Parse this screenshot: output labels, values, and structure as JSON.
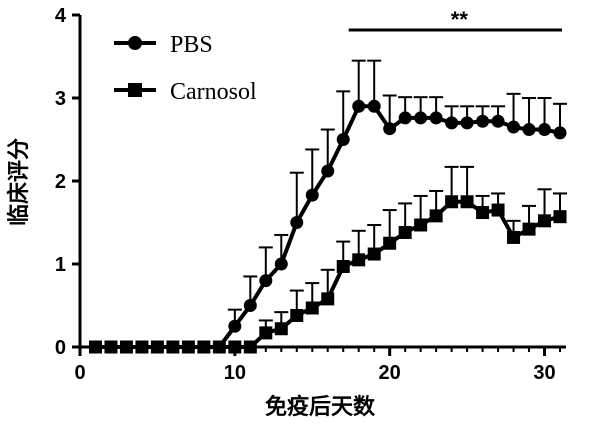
{
  "chart_data": {
    "type": "line",
    "title": "",
    "xlabel": "免疫后天数",
    "ylabel": "临床评分",
    "xlim": [
      0,
      31
    ],
    "ylim": [
      0,
      4
    ],
    "xticks": [
      0,
      10,
      20,
      30
    ],
    "yticks": [
      0,
      1,
      2,
      3,
      4
    ],
    "grid": false,
    "legend": "top-left",
    "significance": {
      "label": "**",
      "x_start": 18,
      "x_end": 31
    },
    "series": [
      {
        "name": "PBS",
        "marker": "circle",
        "x": [
          1,
          2,
          3,
          4,
          5,
          6,
          7,
          8,
          9,
          10,
          11,
          12,
          13,
          14,
          15,
          16,
          17,
          18,
          19,
          20,
          21,
          22,
          23,
          24,
          25,
          26,
          27,
          28,
          29,
          30,
          31
        ],
        "y": [
          0,
          0,
          0,
          0,
          0,
          0,
          0,
          0,
          0,
          0.25,
          0.5,
          0.8,
          1.0,
          1.5,
          1.83,
          2.12,
          2.5,
          2.9,
          2.9,
          2.63,
          2.76,
          2.76,
          2.76,
          2.7,
          2.7,
          2.72,
          2.72,
          2.65,
          2.62,
          2.62,
          2.58
        ],
        "err": [
          0,
          0,
          0,
          0,
          0,
          0,
          0,
          0,
          0,
          0.2,
          0.35,
          0.4,
          0.35,
          0.6,
          0.55,
          0.5,
          0.58,
          0.55,
          0.55,
          0.4,
          0.25,
          0.25,
          0.25,
          0.2,
          0.2,
          0.18,
          0.18,
          0.4,
          0.38,
          0.38,
          0.35
        ]
      },
      {
        "name": "Carnosol",
        "marker": "square",
        "x": [
          1,
          2,
          3,
          4,
          5,
          6,
          7,
          8,
          9,
          10,
          11,
          12,
          13,
          14,
          15,
          16,
          17,
          18,
          19,
          20,
          21,
          22,
          23,
          24,
          25,
          26,
          27,
          28,
          29,
          30,
          31
        ],
        "y": [
          0,
          0,
          0,
          0,
          0,
          0,
          0,
          0,
          0,
          0,
          0,
          0.17,
          0.22,
          0.38,
          0.47,
          0.58,
          0.97,
          1.05,
          1.12,
          1.25,
          1.38,
          1.47,
          1.58,
          1.75,
          1.75,
          1.62,
          1.65,
          1.32,
          1.42,
          1.52,
          1.57
        ],
        "err": [
          0,
          0,
          0,
          0,
          0,
          0,
          0,
          0,
          0,
          0,
          0,
          0.15,
          0.2,
          0.3,
          0.3,
          0.35,
          0.3,
          0.35,
          0.35,
          0.4,
          0.35,
          0.35,
          0.3,
          0.42,
          0.42,
          0.2,
          0.2,
          0.2,
          0.28,
          0.38,
          0.28
        ]
      }
    ]
  }
}
